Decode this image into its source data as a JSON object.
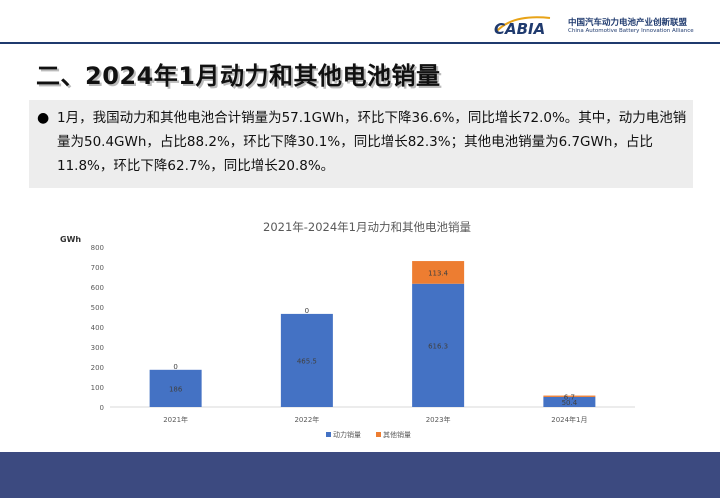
{
  "header": {
    "logo_text": "CABIA",
    "org_name_cn": "中国汽车动力电池产业创新联盟",
    "org_name_en": "China Automotive Battery Innovation Alliance"
  },
  "page_title": "二、2024年1月动力和其他电池销量",
  "summary": "1月，我国动力和其他电池合计销量为57.1GWh，环比下降36.6%，同比增长72.0%。其中，动力电池销量为50.4GWh，占比88.2%，环比下降30.1%，同比增长82.3%；其他电池销量为6.7GWh，占比11.8%，环比下降62.7%，同比增长20.8%。",
  "chart_data": {
    "type": "bar",
    "stacked": true,
    "title": "2021年-2024年1月动力和其他电池销量",
    "ylabel": "GWh",
    "ylim": [
      0,
      800
    ],
    "yticks": [
      0,
      100,
      200,
      300,
      400,
      500,
      600,
      700,
      800
    ],
    "categories": [
      "2021年",
      "2022年",
      "2023年",
      "2024年1月"
    ],
    "series": [
      {
        "name": "动力销量",
        "values": [
          186,
          465.5,
          616.3,
          50.4
        ],
        "color": "#4472c4"
      },
      {
        "name": "其他销量",
        "values": [
          0,
          0,
          113.4,
          6.7
        ],
        "color": "#ed7d31"
      }
    ],
    "legend_position": "bottom",
    "grid": false
  },
  "colors": {
    "footer": "#3c4a80",
    "accent": "#1f3a6e"
  }
}
